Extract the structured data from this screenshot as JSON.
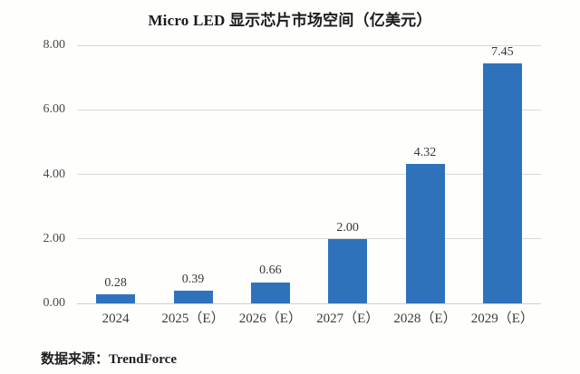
{
  "title": "Micro LED 显示芯片市场空间（亿美元）",
  "source_note": "数据来源：TrendForce",
  "colors": {
    "bar": "#2f72bc",
    "gridline": "#d9d9d9",
    "axis_line": "#cfcfcf",
    "title_text": "#1b1b1b",
    "tick_text": "#484848"
  },
  "chart_data": {
    "type": "bar",
    "title": "Micro LED 显示芯片市场空间（亿美元）",
    "categories": [
      "2024",
      "2025（E）",
      "2026（E）",
      "2027（E）",
      "2028（E）",
      "2029（E）"
    ],
    "values": [
      0.28,
      0.39,
      0.66,
      2.0,
      4.32,
      7.45
    ],
    "value_labels": [
      "0.28",
      "0.39",
      "0.66",
      "2.00",
      "4.32",
      "7.45"
    ],
    "xlabel": "",
    "ylabel": "",
    "ylim": [
      0,
      8
    ],
    "ytick_step": 2,
    "ytick_labels": [
      "0.00",
      "2.00",
      "4.00",
      "6.00",
      "8.00"
    ],
    "grid": true,
    "legend": "none",
    "source": "数据来源：TrendForce"
  }
}
